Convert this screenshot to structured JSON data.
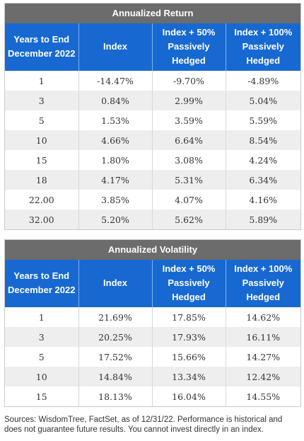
{
  "return_table": {
    "title": "Annualized Return",
    "headers": [
      "Years to End December 2022",
      "Index",
      "Index + 50% Passively Hedged",
      "Index + 100% Passively Hedged"
    ],
    "rows": [
      [
        "1",
        "-14.47%",
        "-9.70%",
        "-4.89%"
      ],
      [
        "3",
        "0.84%",
        "2.99%",
        "5.04%"
      ],
      [
        "5",
        "1.53%",
        "3.59%",
        "5.59%"
      ],
      [
        "10",
        "4.66%",
        "6.64%",
        "8.54%"
      ],
      [
        "15",
        "1.80%",
        "3.08%",
        "4.24%"
      ],
      [
        "18",
        "4.17%",
        "5.31%",
        "6.34%"
      ],
      [
        "22.00",
        "3.85%",
        "4.07%",
        "4.16%"
      ],
      [
        "32.00",
        "5.20%",
        "5.62%",
        "5.89%"
      ]
    ]
  },
  "volatility_table": {
    "title": "Annualized Volatility",
    "headers": [
      "Years to End December 2022",
      "Index",
      "Index + 50% Passively Hedged",
      "Index + 100% Passively Hedged"
    ],
    "rows": [
      [
        "1",
        "21.69%",
        "17.85%",
        "14.62%"
      ],
      [
        "3",
        "20.25%",
        "17.93%",
        "16.11%"
      ],
      [
        "5",
        "17.52%",
        "15.66%",
        "14.27%"
      ],
      [
        "10",
        "14.84%",
        "13.34%",
        "12.42%"
      ],
      [
        "15",
        "18.13%",
        "16.04%",
        "14.55%"
      ]
    ]
  },
  "footnote": "Sources: WisdomTree, FactSet, as of 12/31/22. Performance is historical and does not guarantee future results. You cannot invest directly in an index.",
  "colors": {
    "title_bar": "#6c6c6c",
    "header_bar": "#1769d1",
    "zebra_row": "#eeeeee"
  }
}
